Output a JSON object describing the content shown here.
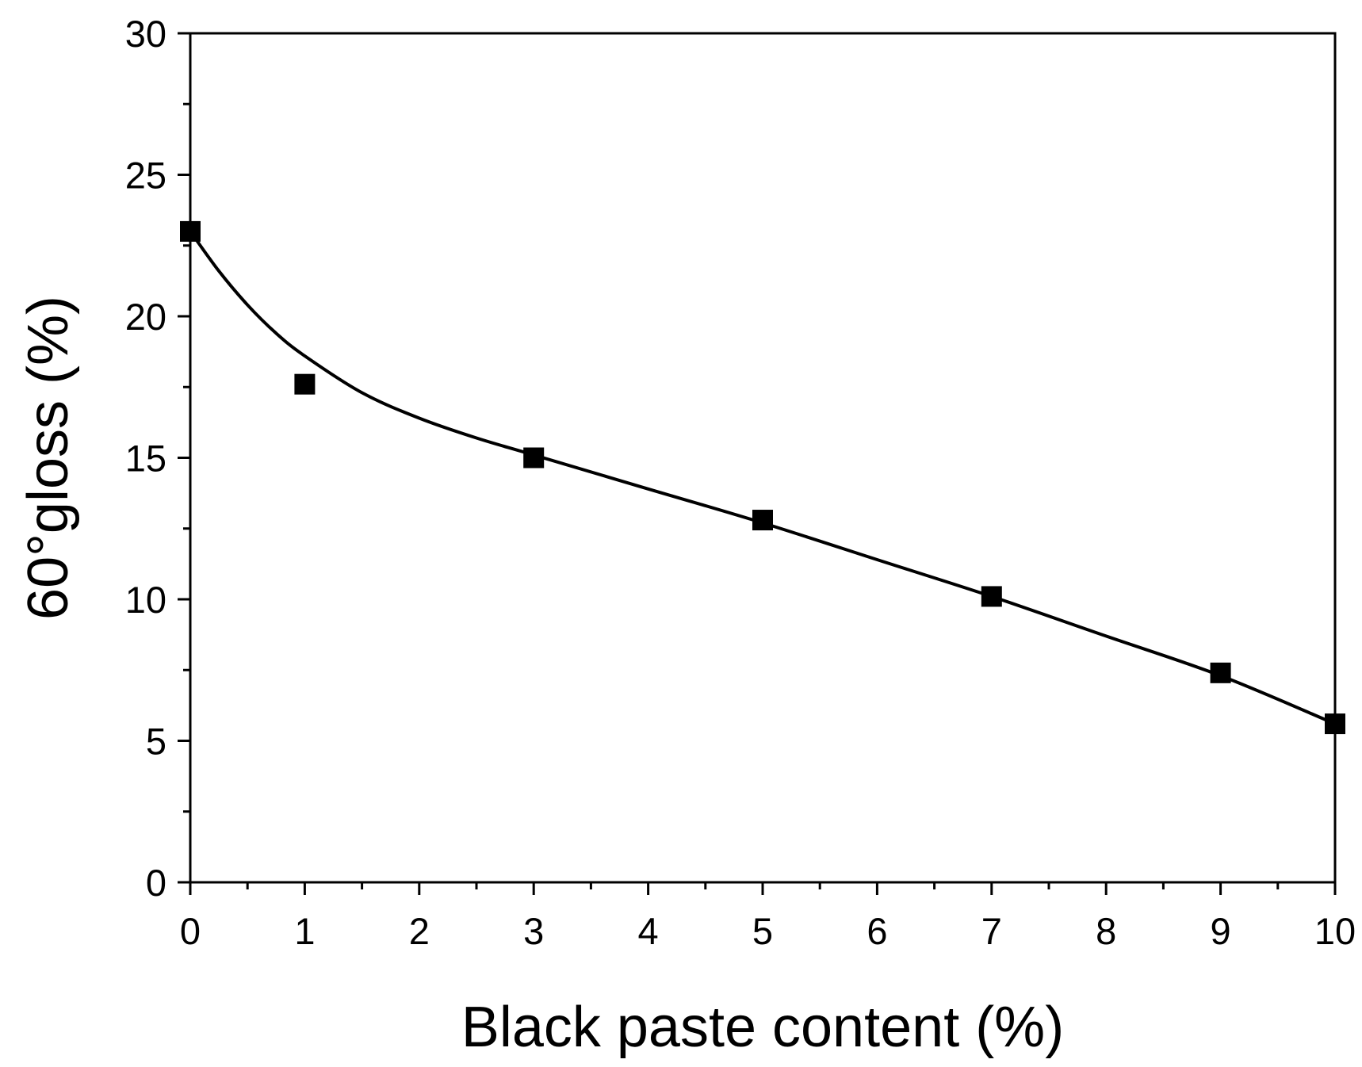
{
  "chart_data": {
    "type": "scatter",
    "xlabel": "Black paste content (%)",
    "ylabel": "60°gloss (%)",
    "xlim": [
      0,
      10
    ],
    "ylim": [
      0,
      30
    ],
    "x_ticks": [
      0,
      1,
      2,
      3,
      4,
      5,
      6,
      7,
      8,
      9,
      10
    ],
    "y_ticks": [
      0,
      5,
      10,
      15,
      20,
      25,
      30
    ],
    "grid": false,
    "legend": "none",
    "series": [
      {
        "marker": "square",
        "color": "#000000",
        "x": [
          0,
          1,
          3,
          5,
          7,
          9,
          10
        ],
        "y": [
          23.0,
          17.6,
          15.0,
          12.8,
          10.1,
          7.4,
          5.6
        ]
      }
    ],
    "fit_curve": {
      "color": "#000000",
      "x": [
        0,
        0.25,
        0.5,
        0.75,
        1,
        1.5,
        2,
        2.5,
        3,
        4,
        5,
        6,
        7,
        8,
        9,
        10
      ],
      "y": [
        23.0,
        21.6,
        20.4,
        19.4,
        18.6,
        17.3,
        16.4,
        15.7,
        15.1,
        13.9,
        12.7,
        11.4,
        10.1,
        8.7,
        7.3,
        5.6
      ]
    }
  }
}
